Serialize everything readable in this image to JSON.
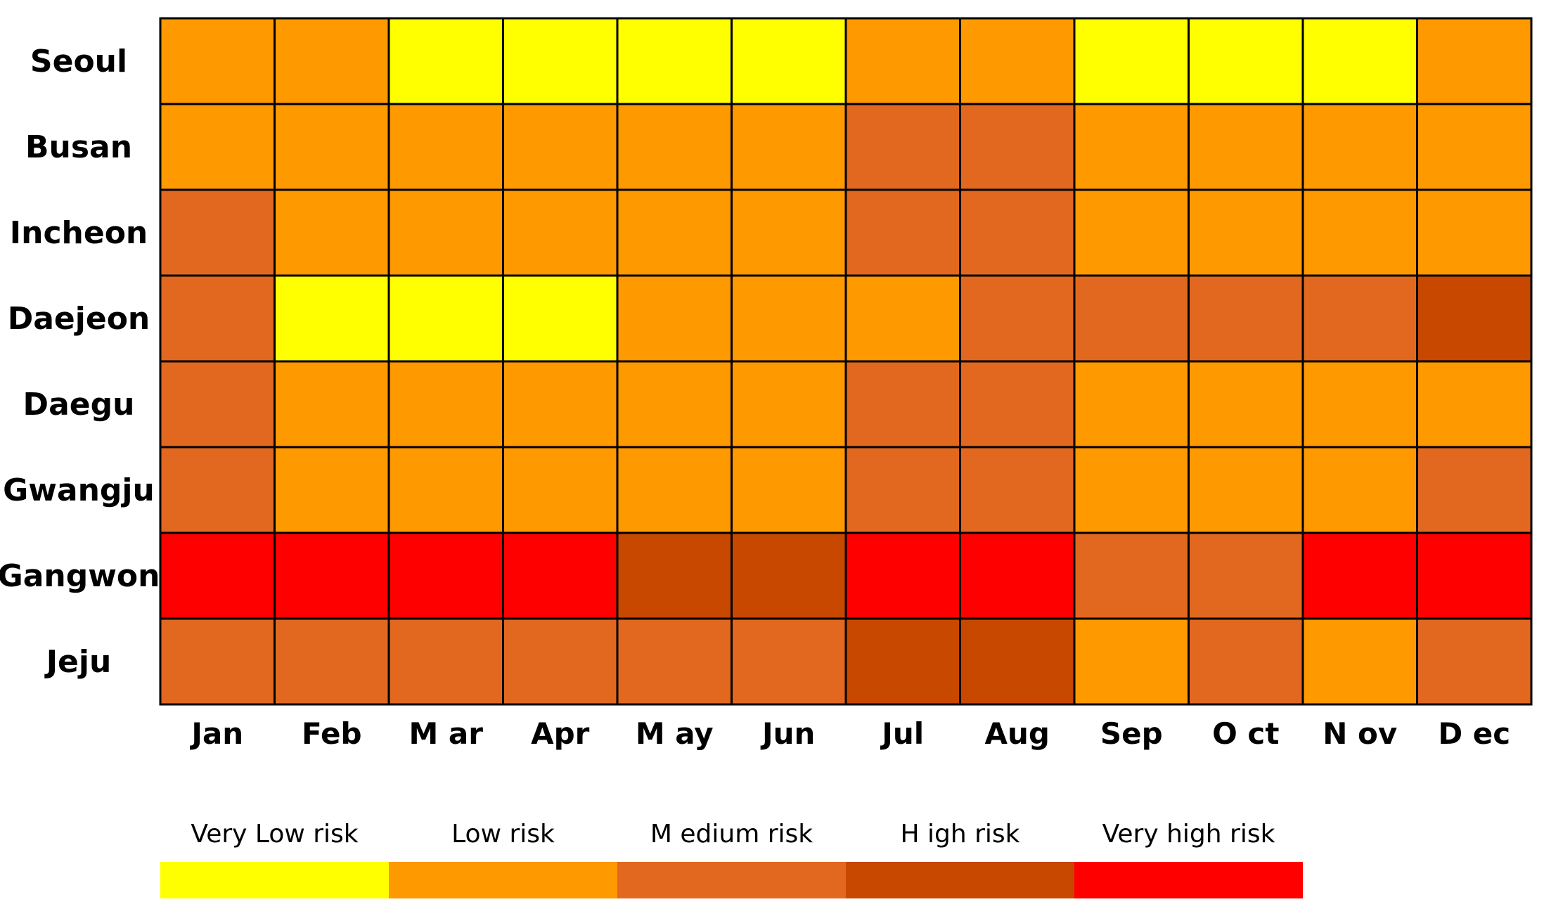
{
  "chart_data": {
    "type": "heatmap",
    "title": "",
    "xlabel": "",
    "ylabel": "",
    "rows": [
      "Seoul",
      "Busan",
      "Incheon",
      "Daejeon",
      "Daegu",
      "Gwangju",
      "Gangwon",
      "Jeju"
    ],
    "columns": [
      "Jan",
      "Feb",
      "Mar",
      "Apr",
      "May",
      "Jun",
      "Jul",
      "Aug",
      "Sep",
      "Oct",
      "Nov",
      "Dec"
    ],
    "values": [
      [
        2,
        2,
        1,
        1,
        1,
        1,
        2,
        2,
        1,
        1,
        1,
        2
      ],
      [
        2,
        2,
        2,
        2,
        2,
        2,
        3,
        3,
        2,
        2,
        2,
        2
      ],
      [
        3,
        2,
        2,
        2,
        2,
        2,
        3,
        3,
        2,
        2,
        2,
        2
      ],
      [
        3,
        1,
        1,
        1,
        2,
        2,
        2,
        3,
        3,
        3,
        3,
        4
      ],
      [
        3,
        2,
        2,
        2,
        2,
        2,
        3,
        3,
        2,
        2,
        2,
        2
      ],
      [
        3,
        2,
        2,
        2,
        2,
        2,
        3,
        3,
        2,
        2,
        2,
        3
      ],
      [
        5,
        5,
        5,
        5,
        4,
        4,
        5,
        5,
        3,
        3,
        5,
        5
      ],
      [
        3,
        3,
        3,
        3,
        3,
        3,
        4,
        4,
        2,
        3,
        2,
        3
      ]
    ],
    "legend": {
      "placement": "bottom",
      "levels": [
        {
          "value": 1,
          "label": "Very Low  risk",
          "color": "#FFFF00"
        },
        {
          "value": 2,
          "label": "Low  risk",
          "color": "#FF9900"
        },
        {
          "value": 3,
          "label": "M edium  risk",
          "color": "#E26820"
        },
        {
          "value": 4,
          "label": "H igh risk",
          "color": "#C84800"
        },
        {
          "value": 5,
          "label": "Very high risk",
          "color": "#FF0000"
        }
      ]
    },
    "grid": true
  },
  "display": {
    "rows": [
      "Seoul",
      "Busan",
      "Incheon",
      "Daejeon",
      "Daegu",
      "Gwangju",
      "Gangwon",
      "Jeju"
    ],
    "columns": [
      "Jan",
      "Feb",
      "M ar",
      "Apr",
      "M ay",
      "Jun",
      "Jul",
      "Aug",
      "Sep",
      "O ct",
      "N ov",
      "D ec"
    ]
  }
}
